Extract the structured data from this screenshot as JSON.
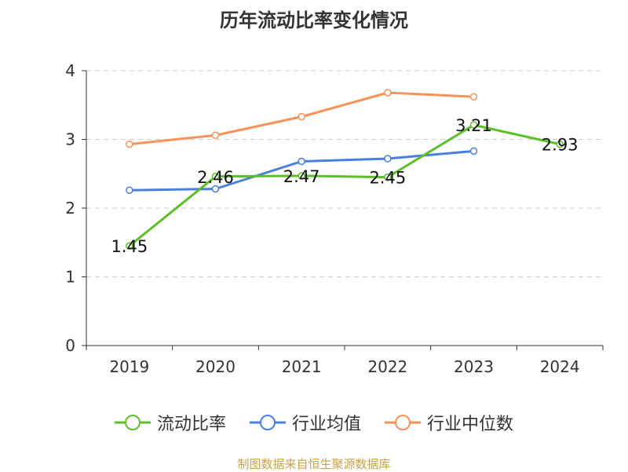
{
  "chart_data": {
    "type": "line",
    "title": "历年流动比率变化情况",
    "categories": [
      "2019",
      "2020",
      "2021",
      "2022",
      "2023",
      "2024"
    ],
    "y_ticks": [
      "0",
      "1",
      "2",
      "3",
      "4"
    ],
    "ylim": [
      0,
      4
    ],
    "grid": true,
    "legend_position": "bottom",
    "series": [
      {
        "name": "流动比率",
        "color": "#5cbf2a",
        "values": [
          1.45,
          2.46,
          2.47,
          2.45,
          3.21,
          2.93
        ],
        "labels": [
          "1.45",
          "2.46",
          "2.47",
          "2.45",
          "3.21",
          "2.93"
        ],
        "show_labels": true
      },
      {
        "name": "行业均值",
        "color": "#4a7fdc",
        "values": [
          2.26,
          2.28,
          2.68,
          2.72,
          2.83,
          null
        ],
        "show_labels": false
      },
      {
        "name": "行业中位数",
        "color": "#f7925a",
        "values": [
          2.93,
          3.06,
          3.33,
          3.68,
          3.62,
          null
        ],
        "show_labels": false
      }
    ]
  },
  "footer": {
    "source": "制图数据来自恒生聚源数据库"
  }
}
